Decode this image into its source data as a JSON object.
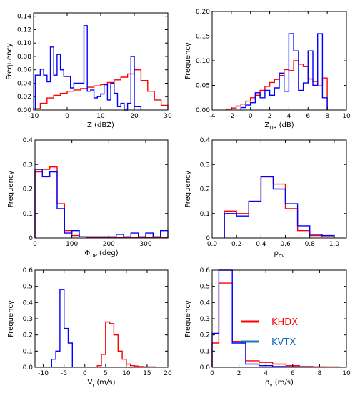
{
  "legend": {
    "entries": [
      {
        "label": "KHDX",
        "color": "#ff0000"
      },
      {
        "label": "KVTX",
        "color": "#0000ff"
      }
    ],
    "text_color_KHDX": "#ff0000",
    "text_color_KVTX": "#1565c0",
    "legend_line_color_KVTX": "#1f77b4"
  },
  "chart_data": [
    {
      "type": "histogram-step",
      "xlabel_main": "Z (dBZ)",
      "xlabel_sub": "",
      "ylabel": "Frequency",
      "xlim": [
        -10,
        30
      ],
      "ylim": [
        0,
        0.145
      ],
      "xticks": [
        -10,
        0,
        10,
        20,
        30
      ],
      "xtick_labels": [
        "-10",
        "0",
        "10",
        "20",
        "30"
      ],
      "yticks": [
        0,
        0.02,
        0.04,
        0.06,
        0.08,
        0.1,
        0.12,
        0.14
      ],
      "ytick_labels": [
        "0.00",
        "0.02",
        "0.04",
        "0.06",
        "0.08",
        "0.10",
        "0.12",
        "0.14"
      ],
      "series": [
        {
          "name": "KHDX",
          "color": "#ff0000",
          "edges": [
            -10,
            -8,
            -6,
            -4,
            -2,
            0,
            2,
            4,
            6,
            8,
            10,
            12,
            14,
            16,
            18,
            20,
            22,
            24,
            26,
            28,
            30
          ],
          "values": [
            0.002,
            0.01,
            0.018,
            0.022,
            0.025,
            0.028,
            0.03,
            0.032,
            0.034,
            0.036,
            0.038,
            0.041,
            0.045,
            0.049,
            0.054,
            0.06,
            0.044,
            0.028,
            0.015,
            0.007
          ]
        },
        {
          "name": "KVTX",
          "color": "#0000ff",
          "edges": [
            -9.5,
            -8,
            -7,
            -6,
            -5,
            -4,
            -3,
            -2,
            -1,
            0,
            1,
            2,
            3,
            4,
            5,
            6,
            7,
            8,
            9,
            10,
            11,
            12,
            13,
            14,
            15,
            16,
            17,
            18,
            19,
            20,
            21,
            22
          ],
          "values": [
            0.052,
            0.061,
            0.052,
            0.042,
            0.094,
            0.052,
            0.083,
            0.06,
            0.05,
            0.05,
            0.033,
            0.04,
            0.04,
            0.04,
            0.126,
            0.028,
            0.03,
            0.018,
            0.02,
            0.024,
            0.038,
            0.015,
            0.04,
            0.025,
            0.005,
            0.01,
            0.0,
            0.01,
            0.08,
            0.005,
            0.005
          ]
        }
      ]
    },
    {
      "type": "histogram-step",
      "xlabel_main": "Z",
      "xlabel_sub": "DR",
      "xlabel_unit": " (dB)",
      "ylabel": "Frequency",
      "xlim": [
        -4,
        10
      ],
      "ylim": [
        0,
        0.2
      ],
      "xticks": [
        -4,
        -2,
        0,
        2,
        4,
        6,
        8,
        10
      ],
      "xtick_labels": [
        "-4",
        "-2",
        "0",
        "2",
        "4",
        "6",
        "8",
        "10"
      ],
      "yticks": [
        0,
        0.05,
        0.1,
        0.15,
        0.2
      ],
      "ytick_labels": [
        "0.00",
        "0.05",
        "0.10",
        "0.15",
        "0.20"
      ],
      "series": [
        {
          "name": "KHDX",
          "color": "#ff0000",
          "edges": [
            -2.5,
            -2,
            -1.5,
            -1,
            -0.5,
            0,
            0.5,
            1,
            1.5,
            2,
            2.5,
            3,
            3.5,
            4,
            4.5,
            5,
            5.5,
            6,
            6.5,
            7,
            7.5,
            8
          ],
          "values": [
            0.002,
            0.004,
            0.008,
            0.012,
            0.018,
            0.025,
            0.03,
            0.04,
            0.048,
            0.056,
            0.062,
            0.07,
            0.082,
            0.08,
            0.1,
            0.093,
            0.088,
            0.063,
            0.058,
            0.049,
            0.065
          ]
        },
        {
          "name": "KVTX",
          "color": "#0000ff",
          "edges": [
            -1,
            -0.5,
            0,
            0.5,
            1,
            1.5,
            2,
            2.5,
            3,
            3.5,
            4,
            4.5,
            5,
            5.5,
            6,
            6.5,
            7,
            7.5,
            8
          ],
          "values": [
            0.005,
            0.01,
            0.015,
            0.035,
            0.025,
            0.04,
            0.03,
            0.045,
            0.075,
            0.038,
            0.155,
            0.12,
            0.04,
            0.055,
            0.12,
            0.05,
            0.155,
            0.025
          ]
        }
      ]
    },
    {
      "type": "histogram-step",
      "xlabel_main": "Φ",
      "xlabel_sub": "DP",
      "xlabel_unit": " (deg)",
      "ylabel": "Frequency",
      "xlim": [
        0,
        360
      ],
      "ylim": [
        0,
        0.4
      ],
      "xticks": [
        0,
        100,
        200,
        300
      ],
      "xtick_labels": [
        "0",
        "100",
        "200",
        "300"
      ],
      "yticks": [
        0,
        0.1,
        0.2,
        0.3,
        0.4
      ],
      "ytick_labels": [
        "0",
        "0.1",
        "0.2",
        "0.3",
        "0.4"
      ],
      "series": [
        {
          "name": "KHDX",
          "color": "#ff0000",
          "edges": [
            0,
            20,
            40,
            60,
            80,
            100,
            120,
            140,
            160,
            180,
            200,
            220,
            240,
            260,
            280,
            300,
            320,
            340,
            360
          ],
          "values": [
            0.27,
            0.28,
            0.29,
            0.14,
            0.03,
            0.01,
            0.005,
            0.003,
            0.002,
            0.001,
            0.001,
            0.001,
            0.001,
            0.001,
            0.001,
            0.001,
            0.001,
            0.001
          ]
        },
        {
          "name": "KVTX",
          "color": "#0000ff",
          "edges": [
            0,
            20,
            40,
            60,
            80,
            100,
            120,
            140,
            160,
            180,
            200,
            220,
            240,
            260,
            280,
            300,
            320,
            340,
            360
          ],
          "values": [
            0.28,
            0.25,
            0.27,
            0.12,
            0.02,
            0.03,
            0.005,
            0.005,
            0.005,
            0.005,
            0.005,
            0.015,
            0.005,
            0.02,
            0.005,
            0.02,
            0.005,
            0.03
          ]
        }
      ]
    },
    {
      "type": "histogram-step",
      "xlabel_main": "ρ",
      "xlabel_sub": "hv",
      "xlabel_unit": "",
      "ylabel": "Frequency",
      "xlim": [
        0,
        1.1
      ],
      "ylim": [
        0,
        0.4
      ],
      "xticks": [
        0,
        0.2,
        0.4,
        0.6,
        0.8,
        1.0
      ],
      "xtick_labels": [
        "0.0",
        "0.2",
        "0.4",
        "0.6",
        "0.8",
        "1.0"
      ],
      "yticks": [
        0,
        0.1,
        0.2,
        0.3,
        0.4
      ],
      "ytick_labels": [
        "0",
        "0.1",
        "0.2",
        "0.3",
        "0.4"
      ],
      "series": [
        {
          "name": "KHDX",
          "color": "#ff0000",
          "edges": [
            0.1,
            0.2,
            0.3,
            0.4,
            0.5,
            0.6,
            0.7,
            0.8,
            0.9,
            1.0
          ],
          "values": [
            0.11,
            0.1,
            0.15,
            0.25,
            0.22,
            0.12,
            0.03,
            0.01,
            0.005
          ]
        },
        {
          "name": "KVTX",
          "color": "#0000ff",
          "edges": [
            0.1,
            0.2,
            0.3,
            0.4,
            0.5,
            0.6,
            0.7,
            0.8,
            0.9,
            1.0
          ],
          "values": [
            0.1,
            0.09,
            0.15,
            0.25,
            0.2,
            0.14,
            0.05,
            0.015,
            0.01
          ]
        }
      ]
    },
    {
      "type": "histogram-step",
      "xlabel_main": "V",
      "xlabel_sub": "r",
      "xlabel_unit": " (m/s)",
      "ylabel": "Frequency",
      "xlim": [
        -12,
        20
      ],
      "ylim": [
        0,
        0.6
      ],
      "xticks": [
        -10,
        -5,
        0,
        5,
        10,
        15,
        20
      ],
      "xtick_labels": [
        "-10",
        "-5",
        "0",
        "5",
        "10",
        "15",
        "20"
      ],
      "yticks": [
        0,
        0.1,
        0.2,
        0.3,
        0.4,
        0.5,
        0.6
      ],
      "ytick_labels": [
        "0.0",
        "0.1",
        "0.2",
        "0.3",
        "0.4",
        "0.5",
        "0.6"
      ],
      "series": [
        {
          "name": "KHDX",
          "color": "#ff0000",
          "edges": [
            3,
            4,
            5,
            6,
            7,
            8,
            9,
            10,
            11,
            12,
            13,
            14,
            15,
            16,
            17,
            18,
            19,
            20
          ],
          "values": [
            0.01,
            0.08,
            0.28,
            0.27,
            0.2,
            0.1,
            0.05,
            0.02,
            0.01,
            0.008,
            0.005,
            0.003,
            0.002,
            0.002,
            0.001,
            0.001,
            0.001
          ]
        },
        {
          "name": "KVTX",
          "color": "#0000ff",
          "edges": [
            -8,
            -7,
            -6,
            -5,
            -4,
            -3
          ],
          "values": [
            0.05,
            0.1,
            0.48,
            0.24,
            0.15
          ]
        }
      ]
    },
    {
      "type": "histogram-step",
      "xlabel_main": "σ",
      "xlabel_sub": "v",
      "xlabel_unit": " (m/s)",
      "ylabel": "Frequency",
      "xlim": [
        0,
        10
      ],
      "ylim": [
        0,
        0.6
      ],
      "xticks": [
        0,
        2,
        4,
        6,
        8,
        10
      ],
      "xtick_labels": [
        "0",
        "2",
        "4",
        "6",
        "8",
        "10"
      ],
      "yticks": [
        0,
        0.1,
        0.2,
        0.3,
        0.4,
        0.5,
        0.6
      ],
      "ytick_labels": [
        "0.0",
        "0.1",
        "0.2",
        "0.3",
        "0.4",
        "0.5",
        "0.6"
      ],
      "series": [
        {
          "name": "KHDX",
          "color": "#ff0000",
          "edges": [
            0,
            0.5,
            1.5,
            2.5,
            3.5,
            4.5,
            5.5,
            6.5,
            7.5,
            8.5,
            9.5
          ],
          "values": [
            0.15,
            0.52,
            0.16,
            0.04,
            0.03,
            0.02,
            0.01,
            0.005,
            0.003,
            0.002
          ]
        },
        {
          "name": "KVTX",
          "color": "#0000ff",
          "edges": [
            0,
            0.5,
            1.5,
            2.5,
            3.5,
            4.5,
            5.5,
            6.5,
            7.5,
            8.5,
            9.5
          ],
          "values": [
            0.21,
            0.6,
            0.15,
            0.02,
            0.01,
            0.005,
            0.003,
            0.002,
            0.001,
            0.001
          ]
        }
      ]
    }
  ]
}
